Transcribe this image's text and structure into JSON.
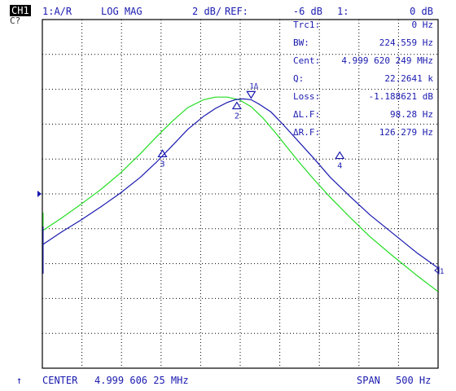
{
  "header": {
    "channel": "CH1",
    "channel_sub": "C?",
    "measurement": "1:A/R",
    "format": "LOG MAG",
    "scale": "2 dB/",
    "ref_label": "REF:",
    "ref_value": "-6 dB",
    "marker_label": "1:",
    "marker_value": "0 dB"
  },
  "marker_table": [
    {
      "label": "Trc1:",
      "value": "0 Hz"
    },
    {
      "label": "BW:",
      "value": "224.559 Hz"
    },
    {
      "label": "Cent:",
      "value": "4.999 620 249 MHz"
    },
    {
      "label": "Q:",
      "value": "22.2641 k"
    },
    {
      "label": "Loss:",
      "value": "-1.188621 dB"
    },
    {
      "label": "ΔL.F:",
      "value": "98.28 Hz"
    },
    {
      "label": "ΔR.F:",
      "value": "126.279 Hz"
    }
  ],
  "footer": {
    "arrow": "↑",
    "center_label": "CENTER",
    "center_value": "4.999 606 25 MHz",
    "span_label": "SPAN",
    "span_value": "500 Hz"
  },
  "colors": {
    "grid": "#000000",
    "trace_primary": "#1a1ab0",
    "trace_secondary": "#22dd22",
    "text": "#1a1ab0"
  },
  "chart_data": {
    "type": "line",
    "x_range_hz": [
      4999356.25,
      4999856.25
    ],
    "y_range_db": [
      -16,
      4
    ],
    "grid_divisions": {
      "x": 10,
      "y": 10
    },
    "series": [
      {
        "color": "#1a1ab0",
        "x": [
          4999357,
          4999380,
          4999405,
          4999430,
          4999455,
          4999480,
          4999500,
          4999520,
          4999540,
          4999560,
          4999575,
          4999590,
          4999600,
          4999610,
          4999620,
          4999630,
          4999645,
          4999660,
          4999680,
          4999700,
          4999720,
          4999745,
          4999770,
          4999800,
          4999830,
          4999856
        ],
        "y": [
          -8.9,
          -8.2,
          -7.5,
          -6.75,
          -5.95,
          -5.05,
          -4.2,
          -3.25,
          -2.3,
          -1.55,
          -1.1,
          -0.75,
          -0.6,
          -0.55,
          -0.6,
          -0.85,
          -1.3,
          -2.0,
          -3.0,
          -4.0,
          -5.05,
          -6.15,
          -7.2,
          -8.3,
          -9.4,
          -10.25
        ]
      },
      {
        "color": "#22dd22",
        "x": [
          4999357,
          4999380,
          4999405,
          4999430,
          4999455,
          4999480,
          4999500,
          4999520,
          4999540,
          4999560,
          4999575,
          4999590,
          4999605,
          4999620,
          4999635,
          4999650,
          4999665,
          4999680,
          4999700,
          4999720,
          4999745,
          4999770,
          4999800,
          4999830,
          4999856
        ],
        "y": [
          -8.1,
          -7.4,
          -6.6,
          -5.75,
          -4.8,
          -3.7,
          -2.75,
          -1.85,
          -1.05,
          -0.6,
          -0.45,
          -0.45,
          -0.6,
          -1.0,
          -1.65,
          -2.45,
          -3.3,
          -4.15,
          -5.2,
          -6.2,
          -7.35,
          -8.45,
          -9.6,
          -10.7,
          -11.6
        ]
      }
    ],
    "markers": [
      {
        "label": "1",
        "x": 4999620,
        "y": -0.55,
        "marker_type": "active"
      },
      {
        "label": "2",
        "x": 4999602,
        "y": -0.7,
        "marker_type": "normal"
      },
      {
        "label": "3",
        "x": 4999508,
        "y": -3.45,
        "marker_type": "normal"
      },
      {
        "label": "4",
        "x": 4999732,
        "y": -3.55,
        "marker_type": "normal"
      }
    ],
    "ref_level_db": -6
  }
}
